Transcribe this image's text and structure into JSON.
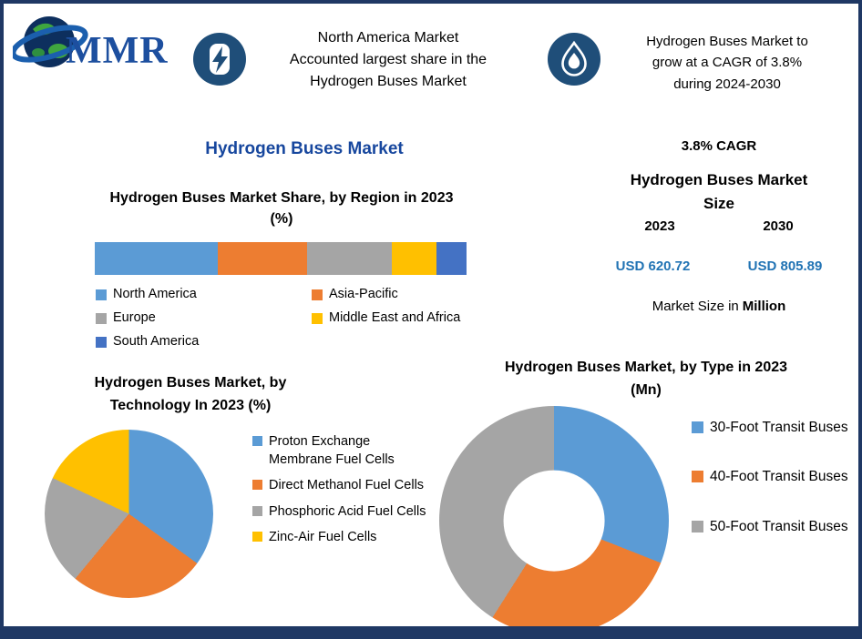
{
  "colors": {
    "navy": "#1F3864",
    "icon_navy": "#1F4E79",
    "title_blue": "#17479E",
    "value_blue": "#2173B4"
  },
  "header": {
    "logo_text": "MMR",
    "callout1": {
      "lines": [
        "North America Market",
        "Accounted largest share in the",
        "Hydrogen Buses Market"
      ]
    },
    "callout2": {
      "lines": [
        "Hydrogen Buses Market to",
        "grow at a CAGR of 3.8%",
        "during 2024-2030"
      ]
    }
  },
  "main_title": "Hydrogen Buses Market",
  "market_size": {
    "cagr": "3.8% CAGR",
    "title": "Hydrogen Buses Market Size",
    "years": [
      "2023",
      "2030"
    ],
    "values": [
      "USD 620.72",
      "USD 805.89"
    ],
    "note_prefix": "Market Size in",
    "note_bold": "Million"
  },
  "chart_data": [
    {
      "type": "bar",
      "stacked": true,
      "title": "Hydrogen Buses Market Share, by Region in 2023 (%)",
      "categories": [
        "2023"
      ],
      "unit": "%",
      "legend_position": "bottom",
      "series": [
        {
          "name": "North America",
          "color": "#5B9BD5",
          "values": [
            33
          ]
        },
        {
          "name": "Asia-Pacific",
          "color": "#ED7D31",
          "values": [
            24
          ]
        },
        {
          "name": "Europe",
          "color": "#A5A5A5",
          "values": [
            23
          ]
        },
        {
          "name": "Middle East and Africa",
          "color": "#FFC000",
          "values": [
            12
          ]
        },
        {
          "name": "South America",
          "color": "#4472C4",
          "values": [
            8
          ]
        }
      ]
    },
    {
      "type": "pie",
      "title": "Hydrogen Buses Market, by Technology In 2023 (%)",
      "unit": "%",
      "legend_position": "right",
      "slices": [
        {
          "label": "Proton Exchange Membrane Fuel Cells",
          "color": "#5B9BD5",
          "value": 35
        },
        {
          "label": "Direct Methanol Fuel Cells",
          "color": "#ED7D31",
          "value": 26
        },
        {
          "label": "Phosphoric Acid Fuel Cells",
          "color": "#A5A5A5",
          "value": 21
        },
        {
          "label": "Zinc-Air Fuel Cells",
          "color": "#FFC000",
          "value": 18
        }
      ]
    },
    {
      "type": "pie",
      "subtype": "donut",
      "title": "Hydrogen Buses Market, by Type in 2023 (Mn)",
      "unit": "Mn",
      "legend_position": "right",
      "slices": [
        {
          "label": "30-Foot Transit Buses",
          "color": "#5B9BD5",
          "value": 31
        },
        {
          "label": "40-Foot Transit Buses",
          "color": "#ED7D31",
          "value": 28
        },
        {
          "label": "50-Foot Transit Buses",
          "color": "#A5A5A5",
          "value": 41
        }
      ]
    }
  ]
}
